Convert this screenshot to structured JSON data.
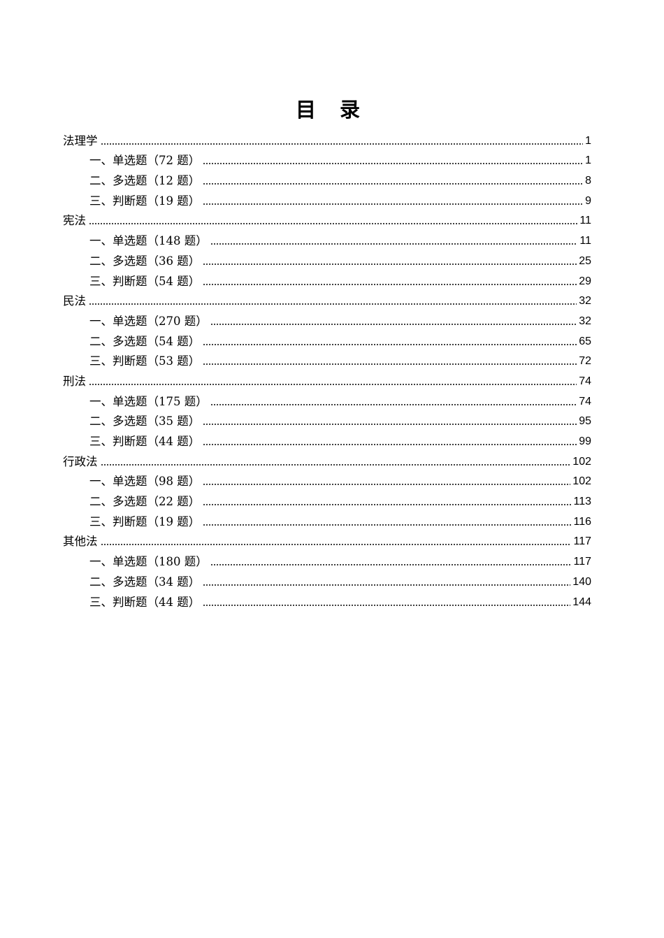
{
  "title": "目 录",
  "entries": [
    {
      "label": "法理学",
      "page": "1",
      "level": 1
    },
    {
      "label": "一、单选题（72 题）",
      "page": "1",
      "level": 2
    },
    {
      "label": "二、多选题（12 题）",
      "page": "8",
      "level": 2
    },
    {
      "label": "三、判断题（19 题）",
      "page": "9",
      "level": 2
    },
    {
      "label": "宪法",
      "page": "11",
      "level": 1
    },
    {
      "label": "一、单选题（148 题）",
      "page": "11",
      "level": 2
    },
    {
      "label": "二、多选题（36 题）",
      "page": "25",
      "level": 2
    },
    {
      "label": "三、判断题（54 题）",
      "page": "29",
      "level": 2
    },
    {
      "label": "民法",
      "page": "32",
      "level": 1
    },
    {
      "label": "一、单选题（270 题）",
      "page": "32",
      "level": 2
    },
    {
      "label": "二、多选题（54 题）",
      "page": "65",
      "level": 2
    },
    {
      "label": "三、判断题（53 题）",
      "page": "72",
      "level": 2
    },
    {
      "label": "刑法",
      "page": "74",
      "level": 1
    },
    {
      "label": "一、单选题（175 题）",
      "page": "74",
      "level": 2
    },
    {
      "label": "二、多选题（35 题）",
      "page": "95",
      "level": 2
    },
    {
      "label": "三、判断题（44 题）",
      "page": "99",
      "level": 2
    },
    {
      "label": "行政法",
      "page": "102",
      "level": 1
    },
    {
      "label": "一、单选题（98 题）",
      "page": "102",
      "level": 2
    },
    {
      "label": "二、多选题（22 题）",
      "page": "113",
      "level": 2
    },
    {
      "label": "三、判断题（19 题）",
      "page": "116",
      "level": 2
    },
    {
      "label": "其他法",
      "page": "117",
      "level": 1
    },
    {
      "label": "一、单选题（180 题）",
      "page": "117",
      "level": 2
    },
    {
      "label": "二、多选题（34 题）",
      "page": "140",
      "level": 2
    },
    {
      "label": "三、判断题（44 题）",
      "page": "144",
      "level": 2
    }
  ]
}
